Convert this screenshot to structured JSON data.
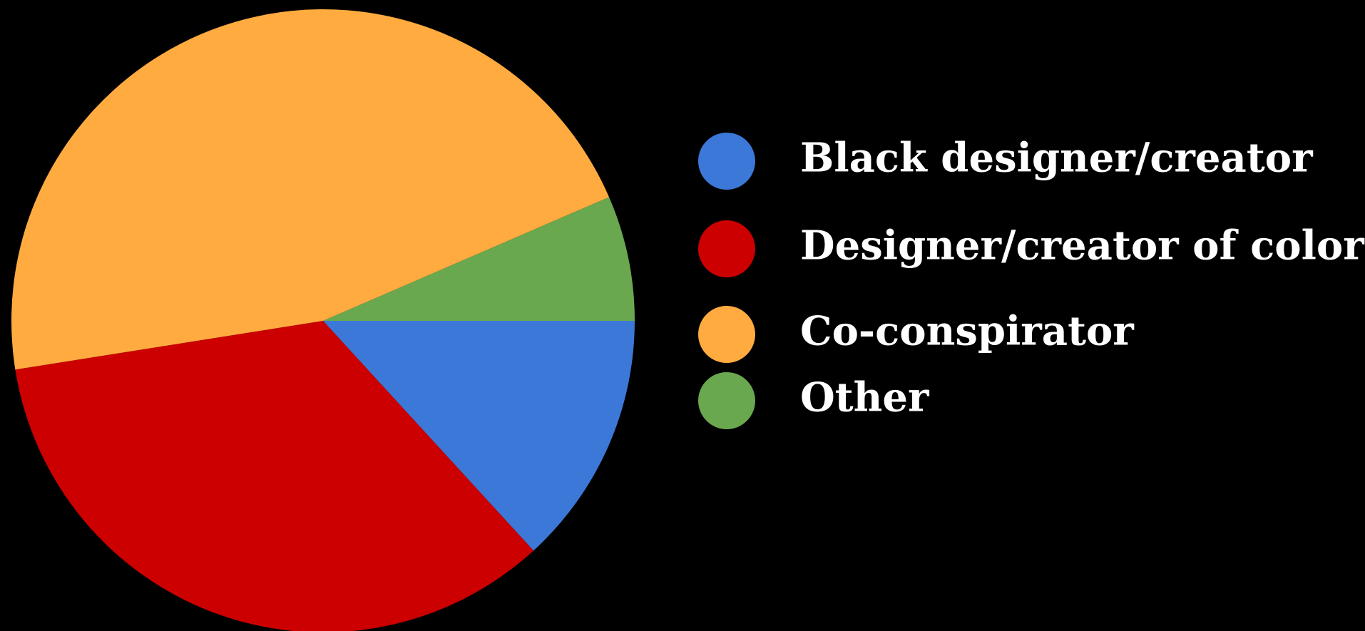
{
  "chart_data": {
    "type": "pie",
    "title": "",
    "background": "#000000",
    "start_angle_deg": 0,
    "direction": "clockwise",
    "slices": [
      {
        "label": "Black designer/creator",
        "value": 13.2,
        "color": "#3c78d8"
      },
      {
        "label": "Designer/creator of color",
        "value": 34.3,
        "color": "#cc0000"
      },
      {
        "label": "Co-conspirator",
        "value": 46.0,
        "color": "#ffab40"
      },
      {
        "label": "Other",
        "value": 6.5,
        "color": "#6aa84f"
      }
    ],
    "legend": {
      "position": "right",
      "text_color": "#ffffff"
    }
  }
}
